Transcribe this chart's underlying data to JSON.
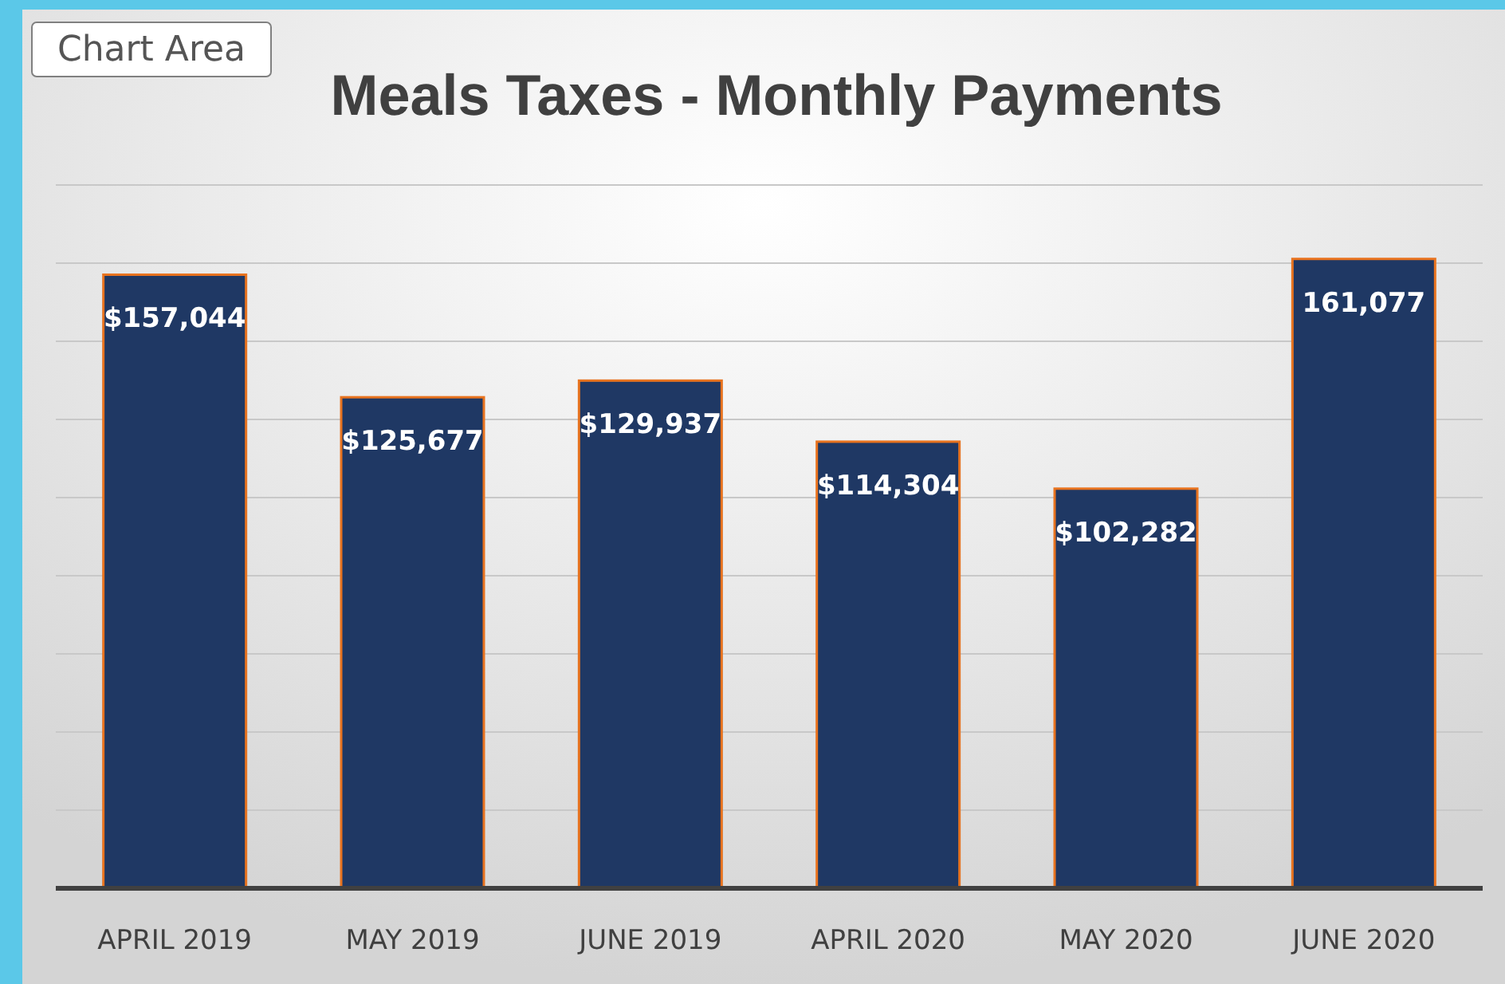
{
  "chart_data": {
    "type": "bar",
    "title": "Meals Taxes - Monthly Payments",
    "categories": [
      "APRIL 2019",
      "MAY 2019",
      "JUNE 2019",
      "APRIL 2020",
      "MAY 2020",
      "JUNE 2020"
    ],
    "values": [
      157044,
      125677,
      129937,
      114304,
      102282,
      161077
    ],
    "value_labels": [
      "$157,044",
      "$125,677",
      "$129,937",
      "$114,304",
      "$102,282",
      "161,077"
    ],
    "color": "#1f3864",
    "ylim": [
      0,
      180000
    ],
    "yticks": [
      {
        "value": 0,
        "label": null
      },
      {
        "value": 20000,
        "label": null
      },
      {
        "value": 40000,
        "label": null
      },
      {
        "value": 60000,
        "label": null
      },
      {
        "value": 80000,
        "label": null
      },
      {
        "value": 100000,
        "label": null
      },
      {
        "value": 120000,
        "label": null
      },
      {
        "value": 140000,
        "label": null
      },
      {
        "value": 160000,
        "label": null
      },
      {
        "value": 180000,
        "label": null
      }
    ],
    "grid": "y",
    "tick_labels": "x",
    "annotations": [
      "Chart Area"
    ]
  }
}
